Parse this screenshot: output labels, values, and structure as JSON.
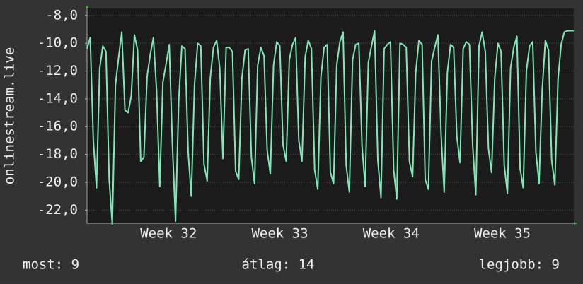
{
  "chart_data": {
    "type": "line",
    "y_label": "onlinestream.live",
    "values": [
      -10.4,
      -9.6,
      -17,
      -20.4,
      -11.8,
      -10.2,
      -10.6,
      -19.8,
      -23,
      -13,
      -11,
      -9.2,
      -14.8,
      -15,
      -13.8,
      -9.4,
      -10.5,
      -18.5,
      -18.2,
      -12.4,
      -10.8,
      -9.6,
      -13.4,
      -20.3,
      -12.8,
      -11.5,
      -10.1,
      -17.2,
      -22.8,
      -14.1,
      -10.2,
      -10.4,
      -17.9,
      -21,
      -13,
      -10,
      -10.2,
      -18.7,
      -19.9,
      -12.5,
      -10.3,
      -9.8,
      -11.8,
      -18.3,
      -10.3,
      -10.3,
      -10.6,
      -19.2,
      -19.8,
      -12.5,
      -10.5,
      -10.4,
      -18.2,
      -20.1,
      -11.6,
      -10.3,
      -10.9,
      -17.7,
      -19.4,
      -11.6,
      -9.9,
      -10.2,
      -17.3,
      -18.5,
      -11.2,
      -10.1,
      -9.6,
      -17,
      -18.5,
      -11,
      -9.8,
      -10.4,
      -19.1,
      -20.5,
      -12.4,
      -10.3,
      -10.1,
      -19.3,
      -20.1,
      -11.6,
      -9.9,
      -9.2,
      -18.8,
      -20.7,
      -11.2,
      -10.1,
      -10,
      -17.4,
      -20.3,
      -11.4,
      -10.2,
      -9.1,
      -18.4,
      -21.1,
      -10.4,
      -10.1,
      -9.9,
      -19.1,
      -21.2,
      -10,
      -10.1,
      -10.3,
      -18.5,
      -19.6,
      -12.1,
      -9.8,
      -10.1,
      -19.8,
      -20.5,
      -11.3,
      -10.3,
      -9.4,
      -16.5,
      -20.7,
      -12.1,
      -10.1,
      -10.3,
      -16.7,
      -18.6,
      -10.4,
      -9.9,
      -10.1,
      -17.3,
      -20.9,
      -10.2,
      -9.2,
      -10.6,
      -17.6,
      -19.3,
      -12.5,
      -10,
      -10.6,
      -18.8,
      -20.8,
      -11.8,
      -10.3,
      -9.5,
      -19,
      -20.4,
      -12,
      -10.2,
      -9.9,
      -17.8,
      -20.1,
      -13.4,
      -9.8,
      -10.5,
      -18.4,
      -20.2,
      -12.6,
      -10.1,
      -9.2,
      -9.1,
      -9.1,
      -9.1
    ],
    "color": "#7fe8b4",
    "xlim": [
      0,
      154
    ],
    "xticks": [
      {
        "value": 25.8,
        "label": "Week 32"
      },
      {
        "value": 61,
        "label": "Week 33"
      },
      {
        "value": 96.2,
        "label": "Week 34"
      },
      {
        "value": 131.4,
        "label": "Week 35"
      }
    ],
    "ylim": [
      -22.95,
      -7.4
    ],
    "yticks": [
      {
        "value": -22,
        "label": "-22,0"
      },
      {
        "value": -20,
        "label": "-20,0"
      },
      {
        "value": -18,
        "label": "-18,0"
      },
      {
        "value": -16,
        "label": "-16,0"
      },
      {
        "value": -14,
        "label": "-14,0"
      },
      {
        "value": -12,
        "label": "-12,0"
      },
      {
        "value": -10,
        "label": "-10,0"
      },
      {
        "value": -8,
        "label": "-8,0"
      }
    ],
    "grid": true,
    "footer": [
      "most: 9",
      "átlag: 14",
      "legjobb: 9"
    ]
  }
}
